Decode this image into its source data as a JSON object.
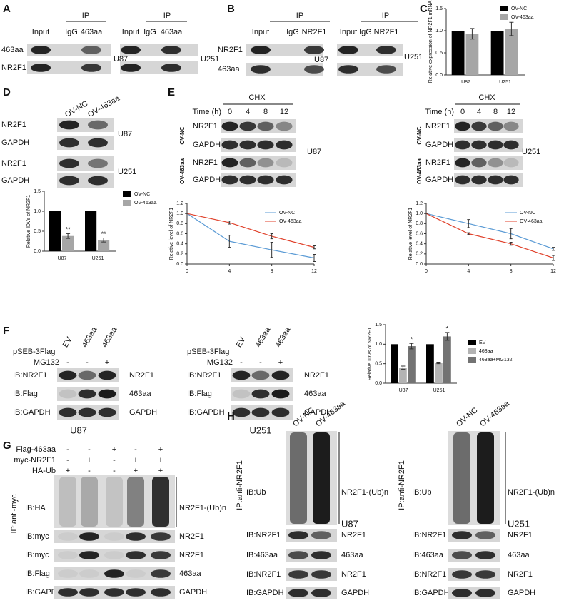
{
  "A": {
    "label": "A",
    "left": {
      "ip": "IP",
      "lanes": [
        "Input",
        "IgG",
        "463aa"
      ],
      "rows": [
        "463aa",
        "NR2F1"
      ],
      "cell": "U87"
    },
    "right": {
      "ip": "IP",
      "lanes": [
        "Input",
        "IgG",
        "463aa"
      ],
      "cell": "U251"
    }
  },
  "B": {
    "label": "B",
    "left": {
      "ip": "IP",
      "lanes": [
        "Input",
        "IgG",
        "NR2F1"
      ],
      "rows": [
        "NR2F1",
        "463aa"
      ],
      "cell": "U87"
    },
    "right": {
      "ip": "IP",
      "lanes": [
        "Input",
        "IgG",
        "NR2F1"
      ],
      "cell": "U251"
    }
  },
  "C": {
    "label": "C"
  },
  "D": {
    "label": "D",
    "groups": [
      "OV-NC",
      "OV-463aa"
    ],
    "rows": [
      "NR2F1",
      "GAPDH",
      "NR2F1",
      "GAPDH"
    ],
    "cells": [
      "U87",
      "U251"
    ]
  },
  "E": {
    "label": "E",
    "left": {
      "treatment": "CHX",
      "time": "Time (h)",
      "lanes": [
        "0",
        "4",
        "8",
        "12"
      ],
      "groups": [
        "OV-NC",
        "OV-463aa"
      ],
      "rows": [
        "NR2F1",
        "GAPDH",
        "NR2F1",
        "GAPDH"
      ],
      "cell": "U87"
    },
    "right": {
      "treatment": "CHX",
      "time": "Time (h)",
      "lanes": [
        "0",
        "4",
        "8",
        "12"
      ],
      "groups": [
        "OV-NC",
        "OV-463aa"
      ],
      "rows": [
        "NR2F1",
        "GAPDH",
        "NR2F1",
        "GAPDH"
      ],
      "cell": "U251"
    }
  },
  "F": {
    "label": "F",
    "left": {
      "vector": "pSEB-3Flag",
      "lanes": [
        "EV",
        "463aa",
        "463aa"
      ],
      "treatment": "MG132",
      "signs": [
        "-",
        "-",
        "+"
      ],
      "rows": [
        "IB:NR2F1",
        "IB:Flag",
        "IB:GAPDH"
      ],
      "targets": [
        "NR2F1",
        "463aa",
        "GAPDH"
      ],
      "cell": "U87"
    },
    "right": {
      "vector": "pSEB-3Flag",
      "lanes": [
        "EV",
        "463aa",
        "463aa"
      ],
      "treatment": "MG132",
      "signs": [
        "-",
        "-",
        "+"
      ],
      "rows": [
        "IB:NR2F1",
        "IB:Flag",
        "IB:GAPDH"
      ],
      "targets": [
        "NR2F1",
        "463aa",
        "GAPDH"
      ],
      "cell": "U251"
    }
  },
  "G": {
    "label": "G",
    "conditions": [
      {
        "name": "Flag-463aa",
        "signs": [
          "-",
          "-",
          "+",
          "-",
          "+"
        ]
      },
      {
        "name": "myc-NR2F1",
        "signs": [
          "-",
          "+",
          "-",
          "+",
          "+"
        ]
      },
      {
        "name": "HA-Ub",
        "signs": [
          "+",
          "-",
          "-",
          "+",
          "+"
        ]
      }
    ],
    "ip": "IP:anti-myc",
    "rows": [
      "IB:HA",
      "IB:myc",
      "IB:myc",
      "IB:Flag",
      "IB:GAPDH"
    ],
    "targets": [
      "NR2F1-(Ub)n",
      "NR2F1",
      "NR2F1",
      "463aa",
      "GAPDH"
    ]
  },
  "H": {
    "label": "H",
    "left": {
      "groups": [
        "OV-NC",
        "OV-463aa"
      ],
      "ip": "IP:anti-NR2F1",
      "rows": [
        "IB:Ub",
        "IB:NR2F1",
        "IB:463aa",
        "IB:NR2F1",
        "IB:GAPDH"
      ],
      "targets": [
        "NR2F1-(Ub)n",
        "NR2F1",
        "463aa",
        "NR2F1",
        "GAPDH"
      ],
      "cell": "U87"
    },
    "right": {
      "groups": [
        "OV-NC",
        "OV-463aa"
      ],
      "ip": "IP:anti-NR2F1",
      "rows": [
        "IB:Ub",
        "IB:NR2F1",
        "IB:463aa",
        "IB:NR2F1",
        "IB:GAPDH"
      ],
      "targets": [
        "NR2F1-(Ub)n",
        "NR2F1",
        "463aa",
        "NR2F1",
        "GAPDH"
      ],
      "cell": "U251"
    }
  },
  "chart_data": [
    {
      "type": "bar",
      "ylabel": "Relative expression of NR2F1 mRNA",
      "categories": [
        "U87",
        "U251"
      ],
      "series": [
        {
          "name": "OV-NC",
          "color": "#000000",
          "values": [
            1,
            1
          ]
        },
        {
          "name": "OV-463aa",
          "color": "#a6a6a6",
          "values": [
            0.93,
            1.04
          ],
          "errors": [
            0.12,
            0.15
          ]
        }
      ],
      "ylim": [
        0,
        1.5
      ],
      "yticks": [
        {
          "value": 0,
          "label": "0.0"
        },
        {
          "value": 0.5,
          "label": "0.5"
        },
        {
          "value": 1,
          "label": "1.0"
        },
        {
          "value": 1.5,
          "label": "1.5"
        }
      ],
      "legend": "top-right"
    },
    {
      "type": "bar",
      "ylabel": "Relative IDVs of NR2F1",
      "categories": [
        "U87",
        "U251"
      ],
      "series": [
        {
          "name": "OV-NC",
          "color": "#000000",
          "values": [
            1,
            1
          ]
        },
        {
          "name": "OV-463aa",
          "color": "#a6a6a6",
          "values": [
            0.38,
            0.28
          ],
          "errors": [
            0.06,
            0.05
          ]
        }
      ],
      "annotations": [
        {
          "series": "OV-463aa",
          "category": "U87",
          "text": "**"
        },
        {
          "series": "OV-463aa",
          "category": "U251",
          "text": "**"
        }
      ],
      "ylim": [
        0,
        1.5
      ],
      "yticks": [
        {
          "value": 0,
          "label": "0.0"
        },
        {
          "value": 0.5,
          "label": "0.5"
        },
        {
          "value": 1,
          "label": "1.0"
        },
        {
          "value": 1.5,
          "label": "1.5"
        }
      ],
      "legend": "top-right"
    },
    {
      "type": "line",
      "ylabel": "Relative level of NR2F1",
      "x": [
        0,
        4,
        8,
        12
      ],
      "series": [
        {
          "name": "OV-NC",
          "color": "#5b9bd5",
          "values": [
            1,
            0.45,
            0.28,
            0.12
          ],
          "errors": [
            0,
            0.12,
            0.15,
            0.07
          ]
        },
        {
          "name": "OV-463aa",
          "color": "#e0412b",
          "values": [
            1,
            0.82,
            0.55,
            0.33
          ],
          "errors": [
            0,
            0.03,
            0.05,
            0.03
          ]
        }
      ],
      "xlim": [
        0,
        12
      ],
      "xticks": [
        0,
        4,
        8,
        12
      ],
      "ylim": [
        0,
        1.2
      ],
      "yticks": [
        {
          "value": 0,
          "label": "0.0"
        },
        {
          "value": 0.2,
          "label": "0.2"
        },
        {
          "value": 0.4,
          "label": "0.4"
        },
        {
          "value": 0.6,
          "label": "0.6"
        },
        {
          "value": 0.8,
          "label": "0.8"
        },
        {
          "value": 1,
          "label": "1.0"
        },
        {
          "value": 1.2,
          "label": "1.2"
        }
      ],
      "legend": "top-right"
    },
    {
      "type": "line",
      "ylabel": "Relative level of NR2F1",
      "x": [
        0,
        4,
        8,
        12
      ],
      "series": [
        {
          "name": "OV-NC",
          "color": "#5b9bd5",
          "values": [
            1,
            0.8,
            0.6,
            0.3
          ],
          "errors": [
            0,
            0.08,
            0.1,
            0.03
          ]
        },
        {
          "name": "OV-463aa",
          "color": "#e0412b",
          "values": [
            1,
            0.6,
            0.4,
            0.12
          ],
          "errors": [
            0,
            0.02,
            0.03,
            0.05
          ]
        }
      ],
      "xlim": [
        0,
        12
      ],
      "xticks": [
        0,
        4,
        8,
        12
      ],
      "ylim": [
        0,
        1.2
      ],
      "yticks": [
        {
          "value": 0,
          "label": "0.0"
        },
        {
          "value": 0.2,
          "label": "0.2"
        },
        {
          "value": 0.4,
          "label": "0.4"
        },
        {
          "value": 0.6,
          "label": "0.6"
        },
        {
          "value": 0.8,
          "label": "0.8"
        },
        {
          "value": 1,
          "label": "1.0"
        },
        {
          "value": 1.2,
          "label": "1.2"
        }
      ],
      "legend": "top-right"
    },
    {
      "type": "bar",
      "ylabel": "Relative IDVs of NR2F1",
      "categories": [
        "U87",
        "U251"
      ],
      "series": [
        {
          "name": "EV",
          "color": "#000000",
          "values": [
            1,
            1
          ]
        },
        {
          "name": "463aa",
          "color": "#b3b3b3",
          "values": [
            0.4,
            0.52
          ],
          "errors": [
            0.04,
            0.02
          ]
        },
        {
          "name": "463aa+MG132",
          "color": "#737373",
          "values": [
            0.95,
            1.2
          ],
          "errors": [
            0.07,
            0.1
          ]
        }
      ],
      "annotations": [
        {
          "series": "463aa+MG132",
          "category": "U87",
          "text": "*"
        },
        {
          "series": "463aa+MG132",
          "category": "U251",
          "text": "*"
        }
      ],
      "ylim": [
        0,
        1.5
      ],
      "yticks": [
        {
          "value": 0,
          "label": "0.0"
        },
        {
          "value": 0.5,
          "label": "0.5"
        },
        {
          "value": 1,
          "label": "1.0"
        },
        {
          "value": 1.5,
          "label": "1.5"
        }
      ],
      "legend": "right"
    }
  ]
}
